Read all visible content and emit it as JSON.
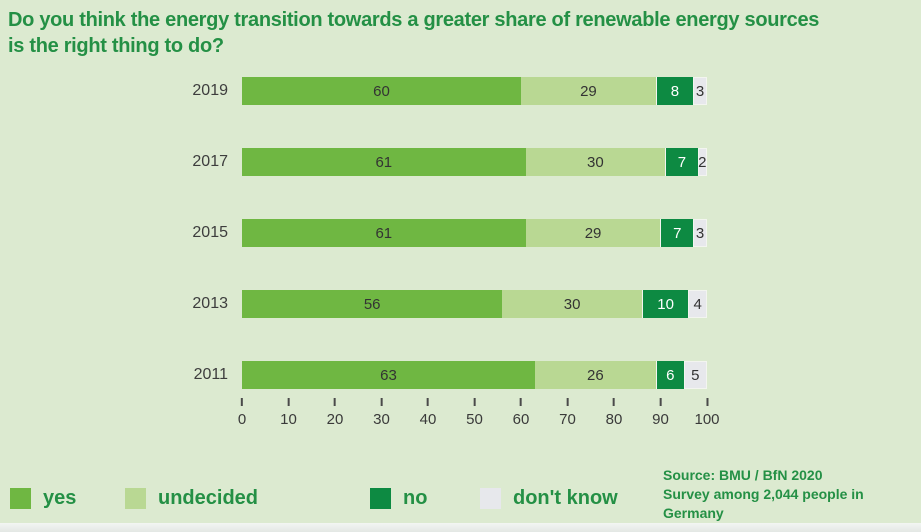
{
  "title": {
    "full": "Do you think the energy transition towards a greater share of renewable energy sources is the right thing to do?",
    "line1": "Do you think the energy transition towards a greater share of renewable energy sources",
    "line2": "is the right thing to do?"
  },
  "chart_data": {
    "type": "bar",
    "orientation": "horizontal-stacked",
    "title": "Do you think the energy transition towards a greater share of renewable energy sources is the right thing to do?",
    "categories": [
      "2019",
      "2017",
      "2015",
      "2013",
      "2011"
    ],
    "series": [
      {
        "name": "yes",
        "color": "#6fb742",
        "text_color": "#333333",
        "values": [
          60,
          61,
          61,
          56,
          63
        ]
      },
      {
        "name": "undecided",
        "color": "#b9d893",
        "text_color": "#333333",
        "values": [
          29,
          30,
          29,
          30,
          26
        ]
      },
      {
        "name": "no",
        "color": "#0d8a42",
        "text_color": "#ffffff",
        "values": [
          8,
          7,
          7,
          10,
          6
        ]
      },
      {
        "name": "don't know",
        "color": "#e7e8ec",
        "text_color": "#333333",
        "values": [
          3,
          2,
          3,
          4,
          5
        ]
      }
    ],
    "xlim": [
      0,
      100
    ],
    "x_ticks": [
      0,
      10,
      20,
      30,
      40,
      50,
      60,
      70,
      80,
      90,
      100
    ],
    "xlabel": "",
    "ylabel": "",
    "grid": false,
    "legend_position": "bottom"
  },
  "source": {
    "line1": "Source: BMU / BfN 2020",
    "line2": "Survey among 2,044 people in Germany"
  },
  "colors": {
    "background": "#dcead0",
    "title_text": "#249045",
    "axis_text": "#3a3a3a",
    "bar_label_dark": "#333333",
    "bar_label_light": "#ffffff"
  }
}
